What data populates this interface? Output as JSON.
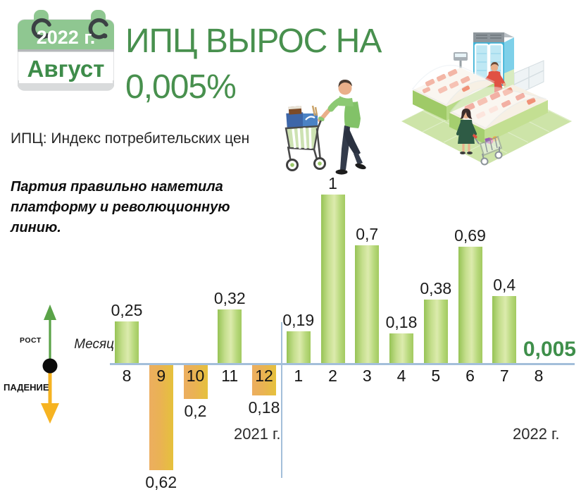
{
  "calendar": {
    "year": "2022 г.",
    "month": "Август"
  },
  "header": {
    "title_line1": "ИПЦ ВЫРОС НА",
    "title_line2": "0,005%",
    "subtitle": "ИПЦ: Индекс потребительских цен"
  },
  "quote": "Партия правильно наметила платформу и революционную линию.",
  "legend": {
    "up": "РОСТ",
    "down": "ПАДЕНИЕ"
  },
  "illustrations": {
    "cart": "shopper-with-cart-illustration",
    "store": "isometric-grocery-store-illustration",
    "calendar": "calendar-page-icon",
    "arrows": "growth-fall-arrows-icon"
  },
  "chart_data": {
    "type": "bar",
    "title": "ИПЦ ВЫРОС НА 0,005%",
    "xlabel": "Месяц",
    "ylabel": "",
    "categories": [
      "8",
      "9",
      "10",
      "11",
      "12",
      "1",
      "2",
      "3",
      "4",
      "5",
      "6",
      "7",
      "8"
    ],
    "values": [
      0.25,
      -0.62,
      -0.2,
      0.32,
      -0.18,
      0.19,
      1,
      0.7,
      0.18,
      0.38,
      0.69,
      0.4,
      0.005
    ],
    "labels": [
      "0,25",
      "0,62",
      "0,2",
      "0,32",
      "0,18",
      "0,19",
      "1",
      "0,7",
      "0,18",
      "0,38",
      "0,69",
      "0,4",
      "0,005"
    ],
    "year_groups": [
      {
        "label": "2021 г."
      },
      {
        "label": "2022 г."
      }
    ],
    "ylim": [
      -0.62,
      1
    ],
    "grid": false,
    "legend_position": "left",
    "colors": {
      "positive_bar_edge": "#96c355",
      "positive_bar_center": "#dcebad",
      "negative_bar_left": "#ecae60",
      "negative_bar_right": "#e5c13c",
      "axis": "#a3bfda",
      "value_label": "#1c1c1c",
      "highlight_value": "#3f8f4b",
      "growth_arrow": "#5aa348",
      "fall_arrow": "#f6b321",
      "title_green": "#48904e"
    }
  }
}
